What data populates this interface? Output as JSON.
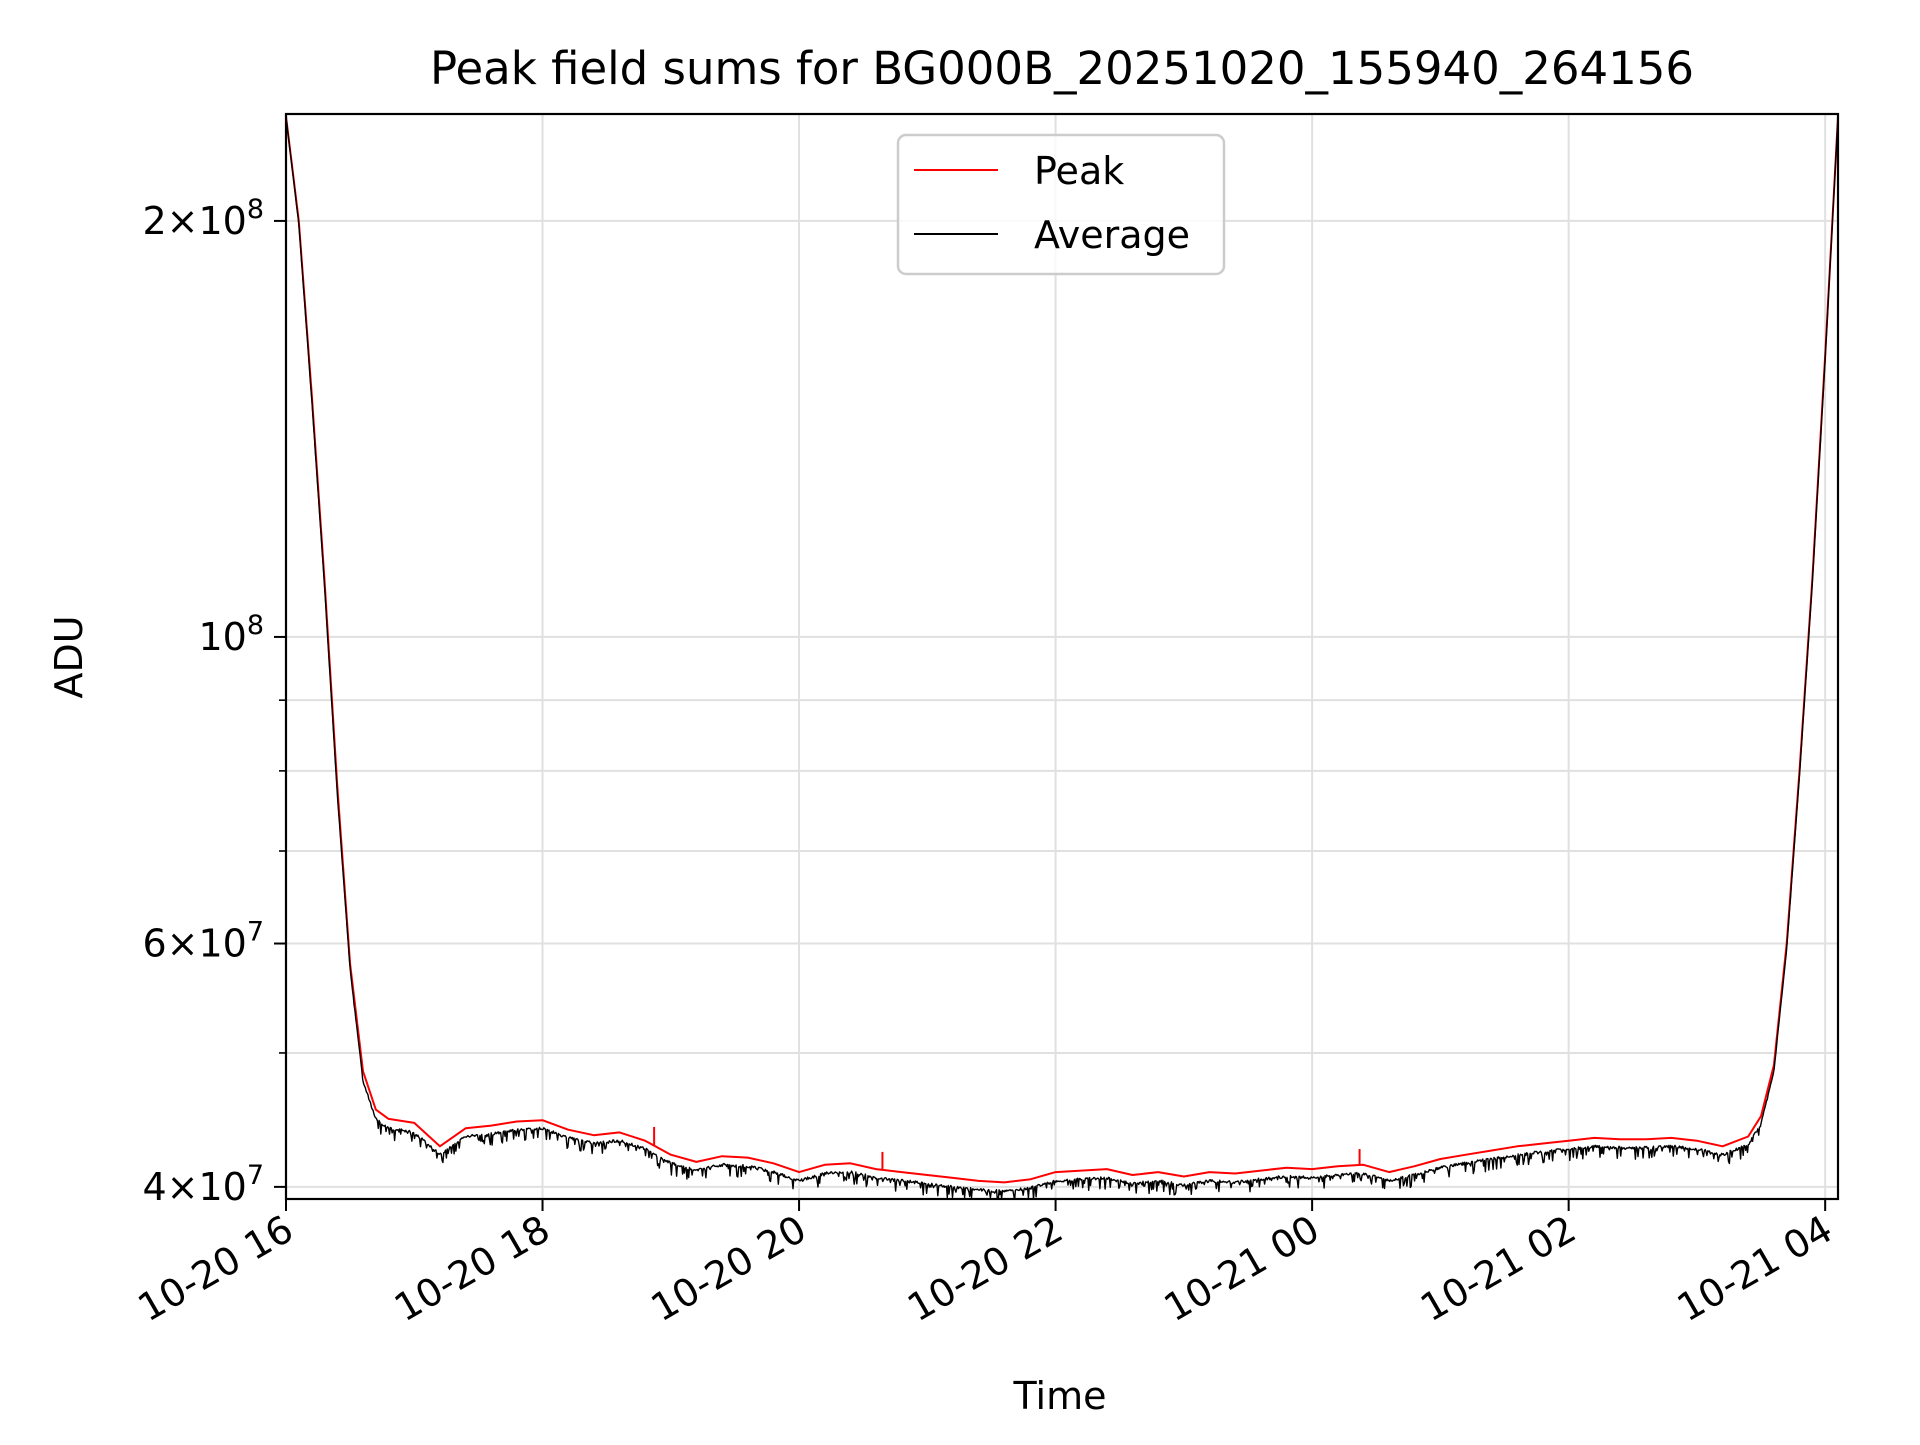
{
  "chart_data": {
    "type": "line",
    "title": "Peak field sums for BG000B_20251020_155940_264156",
    "xlabel": "Time",
    "ylabel": "ADU",
    "yscale": "log",
    "x_unit": "hours since 2025-10-20 16:00",
    "xlim": [
      0.0,
      12.1
    ],
    "ylim": [
      39200000,
      239000000
    ],
    "grid": true,
    "x_ticks": [
      {
        "value": 0,
        "label": "10-20 16"
      },
      {
        "value": 2,
        "label": "10-20 18"
      },
      {
        "value": 4,
        "label": "10-20 20"
      },
      {
        "value": 6,
        "label": "10-20 22"
      },
      {
        "value": 8,
        "label": "10-21 00"
      },
      {
        "value": 10,
        "label": "10-21 02"
      },
      {
        "value": 12,
        "label": "10-21 04"
      }
    ],
    "y_major_ticks": [
      {
        "value": 40000000,
        "mant": "4×10",
        "exp": "7"
      },
      {
        "value": 60000000,
        "mant": "6×10",
        "exp": "7"
      },
      {
        "value": 100000000,
        "mant": "10",
        "exp": "8"
      },
      {
        "value": 200000000,
        "mant": "2×10",
        "exp": "8"
      }
    ],
    "y_minor_ticks": [
      50000000,
      70000000,
      80000000,
      90000000
    ],
    "legend": {
      "position": "upper center",
      "entries": [
        "Peak",
        "Average"
      ]
    },
    "colors": {
      "Peak": "#ff0000",
      "Average": "#000000",
      "grid": "#e0e0e0"
    },
    "series": [
      {
        "name": "Peak",
        "x": [
          0.0,
          0.1,
          0.2,
          0.3,
          0.4,
          0.5,
          0.6,
          0.7,
          0.8,
          1.0,
          1.2,
          1.4,
          1.6,
          1.8,
          2.0,
          2.2,
          2.4,
          2.6,
          2.8,
          3.0,
          3.2,
          3.4,
          3.6,
          3.8,
          4.0,
          4.2,
          4.4,
          4.6,
          4.8,
          5.0,
          5.2,
          5.4,
          5.6,
          5.8,
          6.0,
          6.2,
          6.4,
          6.6,
          6.8,
          7.0,
          7.2,
          7.4,
          7.6,
          7.8,
          8.0,
          8.2,
          8.4,
          8.6,
          8.8,
          9.0,
          9.2,
          9.4,
          9.6,
          9.8,
          10.0,
          10.2,
          10.4,
          10.6,
          10.8,
          11.0,
          11.2,
          11.4,
          11.5,
          11.6,
          11.7,
          11.8,
          11.9,
          12.0,
          12.1
        ],
        "y": [
          238000000,
          200000000,
          150000000,
          110000000,
          78000000,
          58000000,
          48500000,
          45500000,
          44800000,
          44500000,
          42800000,
          44100000,
          44300000,
          44600000,
          44700000,
          44000000,
          43600000,
          43800000,
          43200000,
          42200000,
          41700000,
          42100000,
          42000000,
          41600000,
          41000000,
          41500000,
          41600000,
          41200000,
          41000000,
          40800000,
          40600000,
          40400000,
          40300000,
          40500000,
          41000000,
          41100000,
          41200000,
          40800000,
          41000000,
          40700000,
          41000000,
          40900000,
          41100000,
          41300000,
          41200000,
          41400000,
          41500000,
          41000000,
          41400000,
          41900000,
          42200000,
          42500000,
          42800000,
          43000000,
          43200000,
          43400000,
          43300000,
          43300000,
          43400000,
          43200000,
          42800000,
          43500000,
          45000000,
          49000000,
          60000000,
          80000000,
          110000000,
          160000000,
          238000000
        ],
        "spikes": [
          {
            "x": 2.87,
            "y": 44200000
          },
          {
            "x": 4.65,
            "y": 42400000
          },
          {
            "x": 8.37,
            "y": 42600000
          }
        ]
      },
      {
        "name": "Average",
        "x": [
          0.0,
          0.1,
          0.2,
          0.3,
          0.4,
          0.5,
          0.6,
          0.7,
          0.8,
          1.0,
          1.2,
          1.4,
          1.6,
          1.8,
          2.0,
          2.2,
          2.4,
          2.6,
          2.8,
          3.0,
          3.2,
          3.4,
          3.6,
          3.8,
          4.0,
          4.2,
          4.4,
          4.6,
          4.8,
          5.0,
          5.2,
          5.4,
          5.6,
          5.8,
          6.0,
          6.2,
          6.4,
          6.6,
          6.8,
          7.0,
          7.2,
          7.4,
          7.6,
          7.8,
          8.0,
          8.2,
          8.4,
          8.6,
          8.8,
          9.0,
          9.2,
          9.4,
          9.6,
          9.8,
          10.0,
          10.2,
          10.4,
          10.6,
          10.8,
          11.0,
          11.2,
          11.4,
          11.5,
          11.6,
          11.7,
          11.8,
          11.9,
          12.0,
          12.1
        ],
        "y": [
          238000000,
          199000000,
          149000000,
          109000000,
          77000000,
          57500000,
          47800000,
          44900000,
          44200000,
          43900000,
          42300000,
          43600000,
          43800000,
          44100000,
          44200000,
          43500000,
          43100000,
          43300000,
          42700000,
          41700000,
          41200000,
          41600000,
          41500000,
          41100000,
          40500000,
          41000000,
          41100000,
          40700000,
          40500000,
          40300000,
          40100000,
          39900000,
          39800000,
          40000000,
          40500000,
          40600000,
          40700000,
          40300000,
          40500000,
          40200000,
          40500000,
          40400000,
          40600000,
          40800000,
          40700000,
          40900000,
          41000000,
          40500000,
          40900000,
          41400000,
          41700000,
          42000000,
          42300000,
          42500000,
          42700000,
          42900000,
          42800000,
          42800000,
          42900000,
          42700000,
          42300000,
          43000000,
          44500000,
          48500000,
          59500000,
          79500000,
          109500000,
          159000000,
          238000000
        ],
        "noise_amplitude": 0.012
      }
    ]
  }
}
